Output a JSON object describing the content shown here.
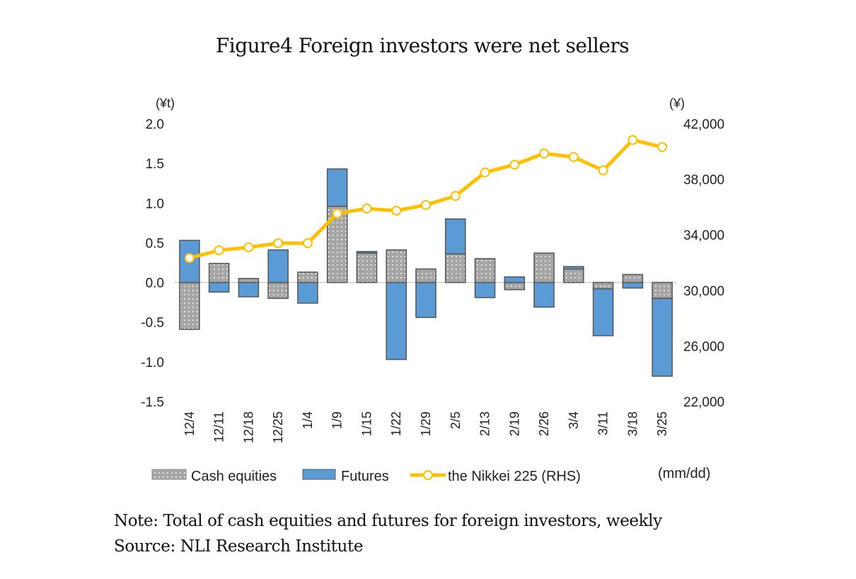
{
  "title": "Figure4 Foreign investors were net sellers",
  "note": "Note: Total of cash equities and futures for foreign investors, weekly",
  "source": "Source: NLI Research Institute",
  "colors": {
    "cash": "#a6a6a6",
    "cash_dot": "#ffffff",
    "futures": "#5b9bd5",
    "bar_border": "#595959",
    "line": "#ffc000",
    "zero_line": "#d9d9d9"
  },
  "chart_data": {
    "type": "bar",
    "subtype": "stacked bar with line on secondary axis",
    "title": "Figure4 Foreign investors were net sellers",
    "xlabel": "(mm/dd)",
    "ylabel": "(¥t)",
    "y2label": "(¥)",
    "categories": [
      "12/4",
      "12/11",
      "12/18",
      "12/25",
      "1/4",
      "1/9",
      "1/15",
      "1/22",
      "1/29",
      "2/5",
      "2/13",
      "2/19",
      "2/26",
      "3/4",
      "3/11",
      "3/18",
      "3/25"
    ],
    "ylim": [
      -1.5,
      2.0
    ],
    "yticks": [
      "2.0",
      "1.5",
      "1.0",
      "0.5",
      "0.0",
      "-0.5",
      "-1.0",
      "-1.5"
    ],
    "ytick_values": [
      2.0,
      1.5,
      1.0,
      0.5,
      0.0,
      -0.5,
      -1.0,
      -1.5
    ],
    "y2lim": [
      22000,
      42000
    ],
    "y2ticks": [
      "42,000",
      "38,000",
      "34,000",
      "30,000",
      "26,000",
      "22,000"
    ],
    "y2tick_values": [
      42000,
      38000,
      34000,
      30000,
      26000,
      22000
    ],
    "grid": false,
    "legend_position": "bottom",
    "series": [
      {
        "name": "Cash equities",
        "type": "bar",
        "axis": "left",
        "values": [
          -0.59,
          0.24,
          0.05,
          -0.2,
          0.13,
          0.96,
          0.37,
          0.41,
          0.17,
          0.36,
          0.3,
          -0.09,
          0.37,
          0.17,
          -0.08,
          0.1,
          -0.2
        ]
      },
      {
        "name": "Futures",
        "type": "bar",
        "axis": "left",
        "values": [
          0.53,
          -0.12,
          -0.18,
          0.41,
          -0.26,
          0.47,
          0.02,
          -0.97,
          -0.44,
          0.44,
          -0.19,
          0.07,
          -0.31,
          0.03,
          -0.59,
          -0.07,
          -0.98
        ]
      },
      {
        "name": "the Nikkei 225 (RHS)",
        "type": "line",
        "axis": "right",
        "values": [
          32330,
          32890,
          33100,
          33400,
          33400,
          35540,
          35890,
          35740,
          36150,
          36800,
          38490,
          39050,
          39860,
          39600,
          38640,
          40830,
          40320
        ]
      }
    ]
  },
  "legend": {
    "cash": "Cash equities",
    "futures": "Futures",
    "line": "the Nikkei 225 (RHS)"
  }
}
